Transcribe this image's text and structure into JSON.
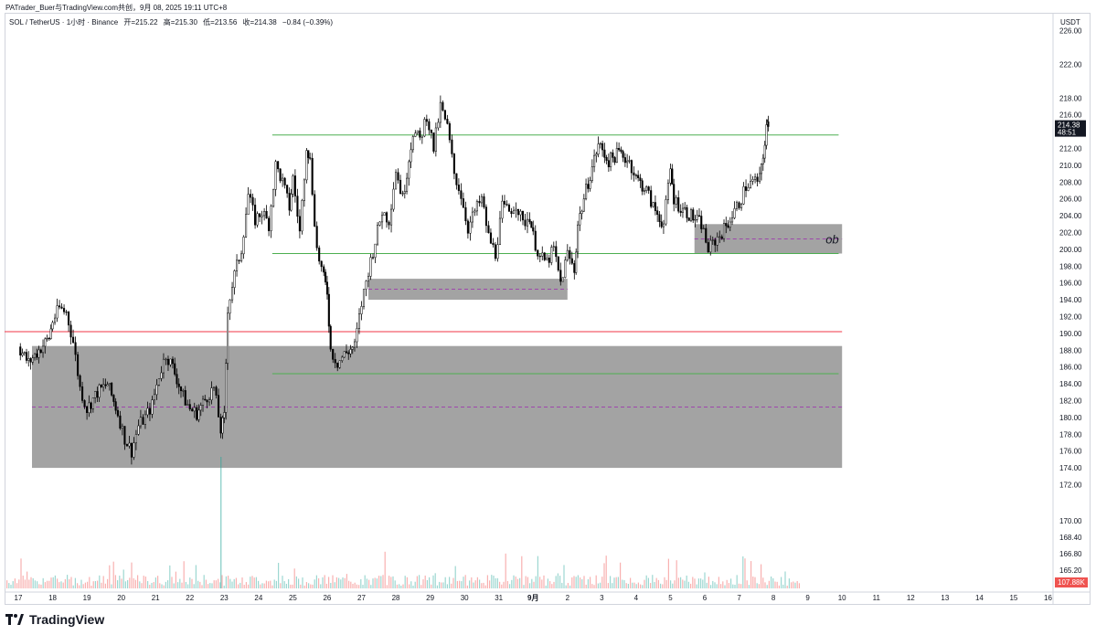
{
  "header": {
    "attribution": "PATrader_Buer与TradingView.com共创，9月 08, 2025 19:11 UTC+8",
    "symbol": "SOL / TetherUS · 1小时 · Binance",
    "open": "开=215.22",
    "high": "高=215.30",
    "low": "低=213.56",
    "close": "收=214.38",
    "change": "−0.84 (−0.39%)",
    "currency": "USDT"
  },
  "footer": {
    "brand": "TradingView"
  },
  "colors": {
    "up": "#ffffff",
    "down": "#000000",
    "wick": "#000000",
    "zone": "#a3a3a3",
    "support": "#4caf50",
    "resistance": "#f23645",
    "midline": "#9c27b0",
    "vol_up": "#26a69a",
    "vol_down": "#ef5350"
  },
  "chart_data": {
    "type": "candlestick",
    "title": "SOL / TetherUS · 1小时 · Binance",
    "y_axis": {
      "ticks": [
        "226.00",
        "222.00",
        "218.00",
        "216.00",
        "214.00",
        "212.00",
        "210.00",
        "208.00",
        "206.00",
        "204.00",
        "202.00",
        "200.00",
        "198.00",
        "196.00",
        "194.00",
        "192.00",
        "190.00",
        "188.00",
        "186.00",
        "184.00",
        "182.00",
        "180.00",
        "178.00",
        "176.00",
        "174.00",
        "172.00",
        "170.00",
        "168.40",
        "166.80",
        "165.20"
      ]
    },
    "x_axis": {
      "ticks": [
        "17",
        "18",
        "19",
        "20",
        "21",
        "22",
        "23",
        "24",
        "25",
        "26",
        "27",
        "28",
        "29",
        "30",
        "31",
        "9月",
        "2",
        "3",
        "4",
        "5",
        "6",
        "7",
        "8",
        "9",
        "10",
        "11",
        "12",
        "13",
        "14",
        "15",
        "16"
      ],
      "bold_tick": "9月"
    },
    "price_path": [
      [
        17.0,
        188.4
      ],
      [
        17.3,
        186.5
      ],
      [
        17.6,
        188.0
      ],
      [
        17.9,
        189.5
      ],
      [
        18.0,
        191.5
      ],
      [
        18.2,
        193.0
      ],
      [
        18.4,
        192.5
      ],
      [
        18.6,
        189.0
      ],
      [
        18.8,
        183.5
      ],
      [
        19.0,
        181.0
      ],
      [
        19.3,
        183.0
      ],
      [
        19.6,
        184.0
      ],
      [
        19.9,
        180.5
      ],
      [
        20.1,
        177.5
      ],
      [
        20.3,
        176.0
      ],
      [
        20.5,
        179.0
      ],
      [
        20.7,
        180.0
      ],
      [
        20.9,
        181.5
      ],
      [
        21.1,
        185.0
      ],
      [
        21.3,
        187.5
      ],
      [
        21.5,
        186.0
      ],
      [
        21.8,
        182.5
      ],
      [
        22.0,
        181.0
      ],
      [
        22.2,
        180.5
      ],
      [
        22.5,
        182.5
      ],
      [
        22.7,
        183.5
      ],
      [
        22.9,
        178.5
      ],
      [
        23.0,
        180.0
      ],
      [
        23.1,
        193.0
      ],
      [
        23.3,
        197.0
      ],
      [
        23.5,
        200.0
      ],
      [
        23.7,
        206.5
      ],
      [
        23.9,
        203.5
      ],
      [
        24.1,
        204.5
      ],
      [
        24.3,
        203.0
      ],
      [
        24.5,
        210.0
      ],
      [
        24.7,
        208.0
      ],
      [
        24.9,
        205.0
      ],
      [
        25.0,
        208.5
      ],
      [
        25.2,
        202.0
      ],
      [
        25.4,
        212.5
      ],
      [
        25.5,
        210.5
      ],
      [
        25.7,
        200.0
      ],
      [
        25.9,
        196.5
      ],
      [
        26.0,
        195.0
      ],
      [
        26.1,
        188.0
      ],
      [
        26.3,
        186.5
      ],
      [
        26.5,
        187.5
      ],
      [
        26.8,
        188.5
      ],
      [
        27.0,
        193.5
      ],
      [
        27.2,
        197.5
      ],
      [
        27.4,
        201.0
      ],
      [
        27.6,
        204.5
      ],
      [
        27.8,
        203.5
      ],
      [
        28.0,
        209.5
      ],
      [
        28.2,
        206.0
      ],
      [
        28.5,
        214.0
      ],
      [
        28.7,
        213.0
      ],
      [
        28.9,
        216.0
      ],
      [
        29.1,
        212.0
      ],
      [
        29.3,
        217.0
      ],
      [
        29.5,
        214.5
      ],
      [
        29.7,
        209.0
      ],
      [
        29.9,
        206.5
      ],
      [
        30.1,
        202.5
      ],
      [
        30.3,
        204.5
      ],
      [
        30.5,
        206.0
      ],
      [
        30.7,
        201.5
      ],
      [
        30.9,
        199.5
      ],
      [
        31.1,
        205.0
      ],
      [
        31.3,
        204.5
      ],
      [
        31.5,
        205.5
      ],
      [
        31.7,
        203.0
      ],
      [
        31.9,
        204.0
      ],
      [
        32.0,
        201.5
      ],
      [
        32.2,
        199.0
      ],
      [
        32.4,
        198.5
      ],
      [
        32.6,
        200.0
      ],
      [
        32.8,
        196.0
      ],
      [
        33.0,
        199.5
      ],
      [
        33.2,
        197.5
      ],
      [
        33.3,
        203.0
      ],
      [
        33.6,
        208.0
      ],
      [
        33.9,
        212.5
      ],
      [
        34.2,
        210.5
      ],
      [
        34.5,
        211.5
      ],
      [
        34.8,
        210.5
      ],
      [
        35.0,
        208.5
      ],
      [
        35.3,
        207.0
      ],
      [
        35.5,
        205.0
      ],
      [
        35.8,
        203.0
      ],
      [
        36.0,
        209.5
      ],
      [
        36.1,
        206.0
      ],
      [
        36.3,
        205.0
      ],
      [
        36.6,
        204.0
      ],
      [
        36.9,
        203.0
      ],
      [
        37.1,
        200.0
      ],
      [
        37.3,
        201.0
      ],
      [
        37.5,
        202.0
      ],
      [
        37.8,
        204.0
      ],
      [
        38.0,
        205.5
      ],
      [
        38.2,
        207.5
      ],
      [
        38.4,
        208.0
      ],
      [
        38.6,
        208.3
      ],
      [
        38.7,
        211.0
      ],
      [
        38.8,
        214.8
      ],
      [
        38.85,
        214.4
      ]
    ],
    "zones": [
      {
        "label": "",
        "from_x": 17.4,
        "to_x": 41.0,
        "y_top": 188.5,
        "y_bottom": 174.0
      },
      {
        "label": "",
        "from_x": 27.2,
        "to_x": 33.0,
        "y_top": 196.5,
        "y_bottom": 194.0
      },
      {
        "label": "ob",
        "from_x": 36.7,
        "to_x": 41.0,
        "y_top": 203.0,
        "y_bottom": 199.5
      }
    ],
    "lines": [
      {
        "color": "support",
        "from_x": 24.4,
        "to_x": 40.9,
        "y": 213.6
      },
      {
        "color": "support",
        "from_x": 24.4,
        "to_x": 40.9,
        "y": 199.5
      },
      {
        "color": "support",
        "from_x": 24.4,
        "to_x": 40.9,
        "y": 185.2
      },
      {
        "color": "resistance",
        "from_x": 16.6,
        "to_x": 41.0,
        "y": 190.2
      }
    ],
    "price_label": {
      "value": "214.38",
      "countdown": "48:51"
    },
    "volume_label": {
      "value": "107.88K"
    }
  }
}
